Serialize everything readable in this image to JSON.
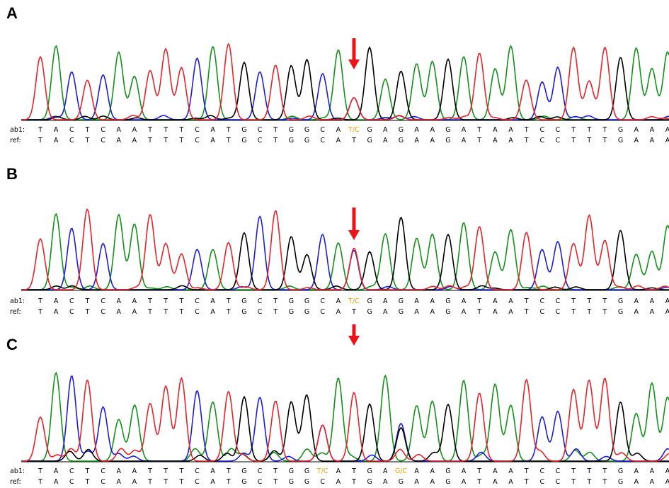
{
  "colors": {
    "A": "#14911b",
    "C": "#1d1ddb",
    "G": "#000000",
    "T": "#e5242b",
    "het": "#f2a100",
    "arrow": "#e8141a"
  },
  "panels": [
    {
      "label": "A",
      "ab1_label": "ab1:",
      "ref_label": "ref:",
      "ab1": [
        "T",
        "A",
        "C",
        "T",
        "C",
        "A",
        "A",
        "T",
        "T",
        "T",
        "C",
        "A",
        "T",
        "G",
        "C",
        "T",
        "G",
        "G",
        "C",
        "A",
        "T/C",
        "G",
        "A",
        "G",
        "A",
        "A",
        "G",
        "A",
        "T",
        "A",
        "A",
        "T",
        "C",
        "C",
        "T",
        "T",
        "T",
        "G",
        "A",
        "A",
        "A"
      ],
      "ref": [
        "T",
        "A",
        "C",
        "T",
        "C",
        "A",
        "A",
        "T",
        "T",
        "T",
        "C",
        "A",
        "T",
        "G",
        "C",
        "T",
        "G",
        "G",
        "C",
        "A",
        "T",
        "G",
        "A",
        "G",
        "A",
        "A",
        "G",
        "A",
        "T",
        "A",
        "A",
        "T",
        "C",
        "C",
        "T",
        "T",
        "T",
        "G",
        "A",
        "A",
        "A"
      ]
    },
    {
      "label": "B",
      "ab1_label": "ab1:",
      "ref_label": "ref:",
      "ab1": [
        "T",
        "A",
        "C",
        "T",
        "C",
        "A",
        "A",
        "T",
        "T",
        "T",
        "C",
        "A",
        "T",
        "G",
        "C",
        "T",
        "G",
        "G",
        "C",
        "A",
        "T/C",
        "G",
        "A",
        "G",
        "A",
        "A",
        "G",
        "A",
        "T",
        "A",
        "A",
        "T",
        "C",
        "C",
        "T",
        "T",
        "T",
        "G",
        "A",
        "A",
        "A"
      ],
      "ref": [
        "T",
        "A",
        "C",
        "T",
        "C",
        "A",
        "A",
        "T",
        "T",
        "T",
        "C",
        "A",
        "T",
        "G",
        "C",
        "T",
        "G",
        "G",
        "C",
        "A",
        "T",
        "G",
        "A",
        "G",
        "A",
        "A",
        "G",
        "A",
        "T",
        "A",
        "A",
        "T",
        "C",
        "C",
        "T",
        "T",
        "T",
        "G",
        "A",
        "A",
        "A"
      ]
    },
    {
      "label": "C",
      "ab1_label": "ab1:",
      "ref_label": "ref:",
      "ab1": [
        "T",
        "A",
        "C",
        "T",
        "C",
        "A",
        "A",
        "T",
        "T",
        "T",
        "C",
        "A",
        "T",
        "G",
        "C",
        "T",
        "G",
        "G",
        "T/C",
        "A",
        "T",
        "G",
        "A",
        "G/C",
        "A",
        "A",
        "G",
        "A",
        "T",
        "A",
        "A",
        "T",
        "C",
        "C",
        "T",
        "T",
        "T",
        "G",
        "A",
        "A",
        "A"
      ],
      "ref": [
        "T",
        "A",
        "C",
        "T",
        "C",
        "A",
        "A",
        "T",
        "T",
        "T",
        "C",
        "A",
        "T",
        "G",
        "C",
        "T",
        "G",
        "G",
        "C",
        "A",
        "T",
        "G",
        "A",
        "G",
        "A",
        "A",
        "G",
        "A",
        "T",
        "A",
        "A",
        "T",
        "C",
        "C",
        "T",
        "T",
        "T",
        "G",
        "A",
        "A",
        "A"
      ]
    }
  ]
}
